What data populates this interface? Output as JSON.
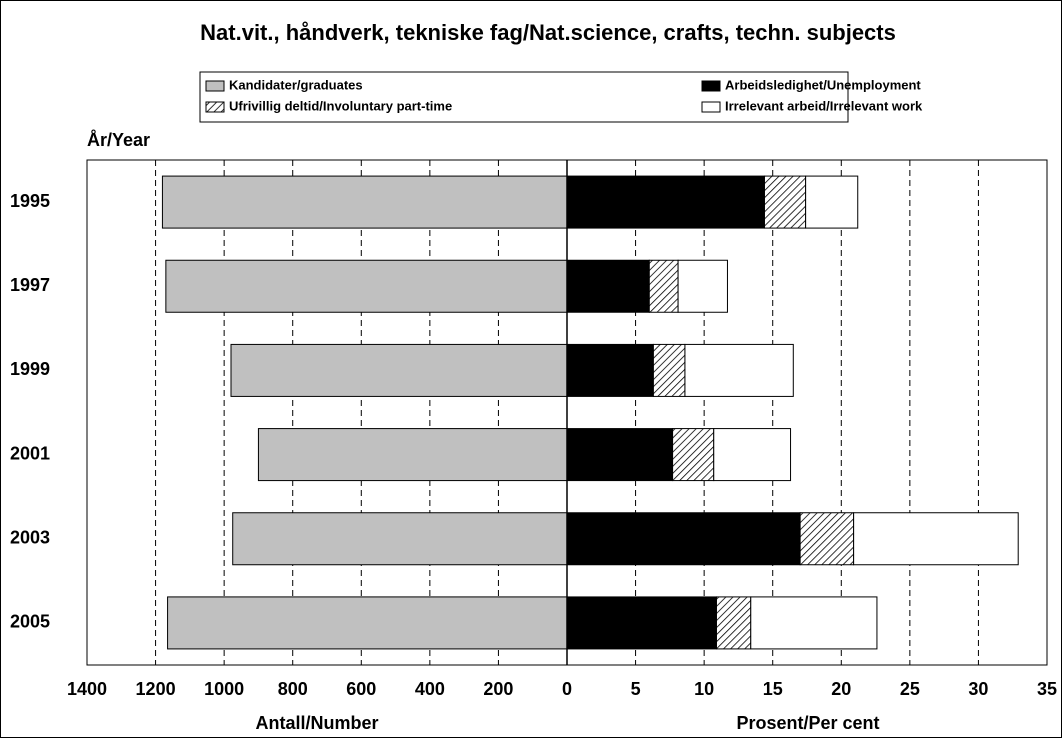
{
  "chart_data": {
    "type": "bar",
    "orientation": "horizontal",
    "title": "Nat.vit., håndverk, tekniske fag/Nat.science, crafts, techn. subjects",
    "y_label": "År/Year",
    "x_label": "Antall/Number",
    "x2_label": "Prosent/Per cent",
    "categories": [
      "1995",
      "1997",
      "1999",
      "2001",
      "2003",
      "2005"
    ],
    "xlim": [
      1400,
      0
    ],
    "xticks": [
      1400,
      1200,
      1000,
      800,
      600,
      400,
      200
    ],
    "x2lim": [
      0,
      35
    ],
    "x2ticks": [
      0,
      5,
      10,
      15,
      20,
      25,
      30,
      35
    ],
    "grid": true,
    "series": [
      {
        "name": "Kandidater/graduates",
        "color": "#c0c0c0",
        "axis": "x",
        "values": [
          1180,
          1170,
          980,
          900,
          975,
          1165
        ]
      },
      {
        "name": "Arbeidsledighet/Unemployment",
        "color": "#000000",
        "axis": "x2",
        "stacked": true,
        "values": [
          14.4,
          6.0,
          6.3,
          7.7,
          17.0,
          10.9
        ]
      },
      {
        "name": "Ufrivillig deltid/Involuntary part-time",
        "color": "hatch",
        "axis": "x2",
        "stacked": true,
        "values": [
          3.0,
          2.1,
          2.3,
          3.0,
          3.9,
          2.5
        ]
      },
      {
        "name": "Irrelevant arbeid/Irrelevant work",
        "color": "#ffffff",
        "axis": "x2",
        "stacked": true,
        "values": [
          3.8,
          3.6,
          7.9,
          5.6,
          12.0,
          9.2
        ]
      }
    ]
  }
}
